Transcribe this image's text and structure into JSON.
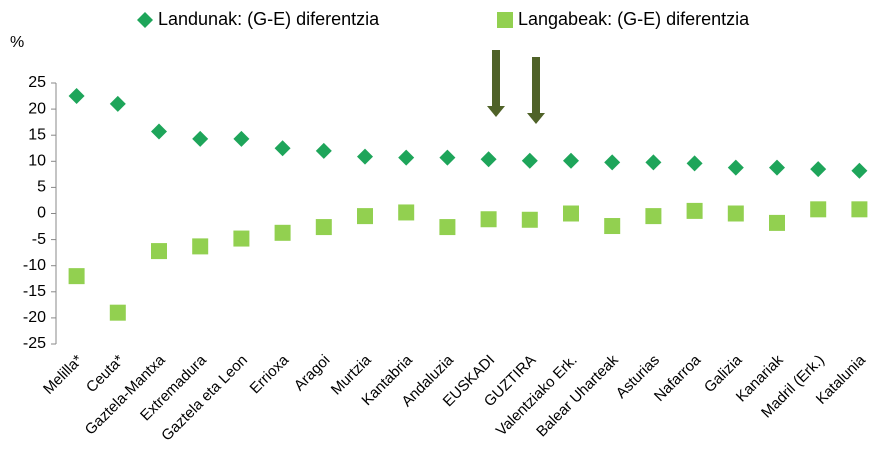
{
  "chart_data": {
    "type": "scatter",
    "y_label": "%",
    "categories": [
      "Melilla*",
      "Ceuta*",
      "Gaztela-Mantxa",
      "Extremadura",
      "Gaztela eta Leon",
      "Errioxa",
      "Aragoi",
      "Murtzia",
      "Kantabria",
      "Andaluzia",
      "EUSKADI",
      "GUZTIRA",
      "Valentziako Erk.",
      "Balear Uharteak",
      "Asturias",
      "Nafarroa",
      "Galizia",
      "Kanariak",
      "Madril (Erk.)",
      "Katalunia"
    ],
    "series": [
      {
        "name": "Landunak: (G-E) diferentzia",
        "color": "#1ea55a",
        "marker": "diamond",
        "values": [
          22.5,
          21,
          15.7,
          14.3,
          14.3,
          12.5,
          12,
          10.9,
          10.7,
          10.7,
          10.4,
          10.1,
          10.1,
          9.8,
          9.8,
          9.6,
          8.8,
          8.8,
          8.5,
          8.2
        ]
      },
      {
        "name": "Langabeak: (G-E) diferentzia",
        "color": "#92d050",
        "marker": "square",
        "values": [
          -12,
          -19,
          -7.2,
          -6.3,
          -4.8,
          -3.7,
          -2.6,
          -0.5,
          0.2,
          -2.6,
          -1.1,
          -1.2,
          0,
          -2.4,
          -0.5,
          0.5,
          0,
          -1.8,
          0.8,
          0.8
        ]
      }
    ],
    "ylim": [
      -25,
      25
    ],
    "yticks": [
      -25,
      -20,
      -15,
      -10,
      -5,
      0,
      5,
      10,
      15,
      20,
      25
    ],
    "grid": false,
    "legend": "top"
  }
}
